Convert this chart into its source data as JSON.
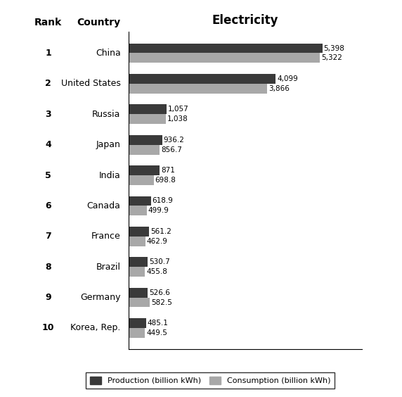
{
  "countries": [
    "China",
    "United States",
    "Russia",
    "Japan",
    "India",
    "Canada",
    "France",
    "Brazil",
    "Germany",
    "Korea, Rep."
  ],
  "ranks": [
    "1",
    "2",
    "3",
    "4",
    "5",
    "6",
    "7",
    "8",
    "9",
    "10"
  ],
  "production": [
    5398,
    4099,
    1057,
    936.2,
    871,
    618.9,
    561.2,
    530.7,
    526.6,
    485.1
  ],
  "consumption": [
    5322,
    3866,
    1038,
    856.7,
    698.8,
    499.9,
    462.9,
    455.8,
    582.5,
    449.5
  ],
  "production_labels": [
    "5,398",
    "4,099",
    "1,057",
    "936.2",
    "871",
    "618.9",
    "561.2",
    "530.7",
    "526.6",
    "485.1"
  ],
  "consumption_labels": [
    "5,322",
    "3,866",
    "1,038",
    "856.7",
    "698.8",
    "499.9",
    "462.9",
    "455.8",
    "582.5",
    "449.5"
  ],
  "production_color": "#3a3a3a",
  "consumption_color": "#a8a8a8",
  "title": "Electricity",
  "header_rank": "Rank",
  "header_country": "Country",
  "legend_production": "Production (billion kWh)",
  "legend_consumption": "Consumption (billion kWh)",
  "bar_height": 0.32,
  "xlim": [
    0,
    6500
  ],
  "background_color": "#ffffff",
  "title_fontsize": 12,
  "label_fontsize": 7.5,
  "tick_fontsize": 9,
  "header_fontsize": 10
}
